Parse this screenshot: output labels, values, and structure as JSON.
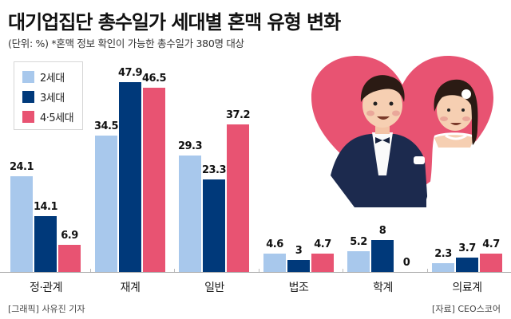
{
  "title": "대기업집단 총수일가 세대별 혼맥 유형 변화",
  "subtitle": "(단위: %) *혼맥 정보 확인이 가능한 총수일가 380명 대상",
  "footer": {
    "credit": "[그래픽] 사유진 기자",
    "source": "[자료] CEO스코어"
  },
  "colors": {
    "gen2": "#a8c8ec",
    "gen3": "#00397a",
    "gen45": "#e85372",
    "axis": "#aaaaaa",
    "heart": "#e85372"
  },
  "legend": [
    {
      "label": "2세대",
      "color": "#a8c8ec"
    },
    {
      "label": "3세대",
      "color": "#00397a"
    },
    {
      "label": "4·5세대",
      "color": "#e85372"
    }
  ],
  "illustration": {
    "description": "wedding couple in heart",
    "icon": "heart-couple-icon"
  },
  "chart_data": {
    "type": "bar",
    "title": "대기업집단 총수일가 세대별 혼맥 유형 변화",
    "subtitle": "(단위: %) *혼맥 정보 확인이 가능한 총수일가 380명 대상",
    "xlabel": "",
    "ylabel": "%",
    "categories": [
      "정·관계",
      "재계",
      "일반",
      "법조",
      "학계",
      "의료계"
    ],
    "series": [
      {
        "name": "2세대",
        "color": "#a8c8ec",
        "values": [
          24.1,
          34.5,
          29.3,
          4.6,
          5.2,
          2.3
        ]
      },
      {
        "name": "3세대",
        "color": "#00397a",
        "values": [
          14.1,
          47.9,
          23.3,
          3,
          8,
          3.7
        ]
      },
      {
        "name": "4·5세대",
        "color": "#e85372",
        "values": [
          6.9,
          46.5,
          37.2,
          4.7,
          0,
          4.7
        ]
      }
    ],
    "value_labels": [
      [
        "24.1",
        "34.5",
        "29.3",
        "4.6",
        "5.2",
        "2.3"
      ],
      [
        "14.1",
        "47.9",
        "23.3",
        "3",
        "8",
        "3.7"
      ],
      [
        "6.9",
        "46.5",
        "37.2",
        "4.7",
        "0",
        "4.7"
      ]
    ],
    "ylim": [
      0,
      50
    ],
    "grid": false,
    "legend_position": "top-left",
    "source": "[자료] CEO스코어"
  }
}
